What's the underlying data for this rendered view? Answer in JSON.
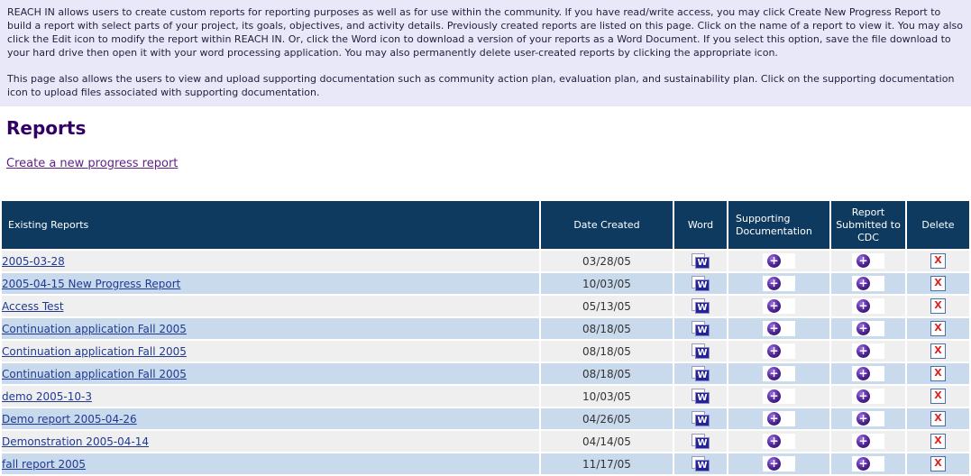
{
  "intro": {
    "paragraph1": "REACH IN allows users to create custom reports for reporting purposes as well as for use within the community. If you have read/write access, you may click Create New Progress Report to build a report with select parts of your project, its goals, objectives, and activity details. Previously created reports are listed on this page. Click on the name of a report to view it. You may also click the Edit icon to modify the report within REACH IN. Or, click the Word icon to download a version of your reports as a Word Document. If you select this option, save the file download to your hard drive then open it with your word processing application. You may also permanently delete user-created reports by clicking the appropriate icon.",
    "paragraph2": "This page also allows the users to view and upload supporting documentation such as community action plan, evaluation plan, and sustainability plan. Click on the supporting documentation icon to upload files associated with supporting documentation."
  },
  "page": {
    "title": "Reports",
    "create_report_link": "Create a new progress report"
  },
  "table": {
    "headers": {
      "existing_reports": "Existing Reports",
      "date_created": "Date Created",
      "word": "Word",
      "supporting_documentation": "Supporting Documentation",
      "report_submitted_to_cdc": "Report Submitted to CDC",
      "delete": "Delete"
    },
    "rows": [
      {
        "name": "2005-03-28",
        "date_created": "03/28/05"
      },
      {
        "name": "2005-04-15 New Progress Report",
        "date_created": "10/03/05"
      },
      {
        "name": "Access Test",
        "date_created": "05/13/05"
      },
      {
        "name": "Continuation application Fall 2005",
        "date_created": "08/18/05"
      },
      {
        "name": "Continuation application Fall 2005",
        "date_created": "08/18/05"
      },
      {
        "name": "Continuation application Fall 2005",
        "date_created": "08/18/05"
      },
      {
        "name": "demo 2005-10-3",
        "date_created": "10/03/05"
      },
      {
        "name": "Demo report 2005-04-26",
        "date_created": "04/26/05"
      },
      {
        "name": "Demonstration 2005-04-14",
        "date_created": "04/14/05"
      },
      {
        "name": "fall report 2005",
        "date_created": "11/17/05"
      }
    ]
  },
  "icons": {
    "word_icon_glyph": "W",
    "supporting_doc_icon_glyph": "+",
    "report_cdc_icon_glyph": "+",
    "delete_icon_glyph": "X"
  },
  "colors": {
    "intro_bg": "#e8e8f8",
    "heading": "#330066",
    "create_link": "#5f1f87",
    "table_header_bg": "#0e3a60",
    "row_odd_bg": "#efefef",
    "row_even_bg": "#c8daec",
    "report_link": "#203a94",
    "word_icon_bg": "#232394",
    "sphere_purple": "#5a2ca0",
    "delete_x": "#dd2222",
    "delete_border": "#4a71a8"
  }
}
